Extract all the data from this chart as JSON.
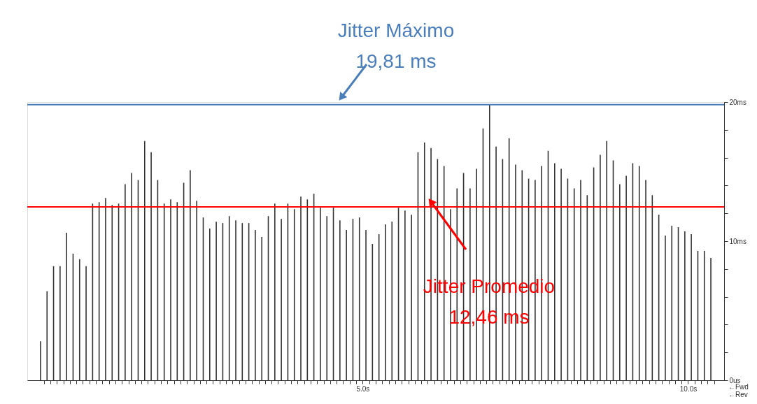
{
  "chart_data": {
    "type": "bar",
    "color": "#333333",
    "x": [
      0.05,
      0.15,
      0.25,
      0.35,
      0.45,
      0.55,
      0.65,
      0.75,
      0.85,
      0.95,
      1.05,
      1.15,
      1.25,
      1.35,
      1.45,
      1.55,
      1.65,
      1.75,
      1.85,
      1.95,
      2.05,
      2.15,
      2.25,
      2.35,
      2.45,
      2.55,
      2.65,
      2.75,
      2.85,
      2.95,
      3.05,
      3.15,
      3.25,
      3.35,
      3.45,
      3.55,
      3.65,
      3.75,
      3.85,
      3.95,
      4.05,
      4.15,
      4.25,
      4.35,
      4.45,
      4.55,
      4.65,
      4.75,
      4.85,
      4.95,
      5.05,
      5.15,
      5.25,
      5.35,
      5.45,
      5.55,
      5.65,
      5.75,
      5.85,
      5.95,
      6.05,
      6.15,
      6.25,
      6.35,
      6.45,
      6.55,
      6.65,
      6.75,
      6.85,
      6.95,
      7.05,
      7.15,
      7.25,
      7.35,
      7.45,
      7.55,
      7.65,
      7.75,
      7.85,
      7.95,
      8.05,
      8.15,
      8.25,
      8.35,
      8.45,
      8.55,
      8.65,
      8.75,
      8.85,
      8.95,
      9.05,
      9.15,
      9.25,
      9.35,
      9.45,
      9.55,
      9.65,
      9.75,
      9.85,
      9.95,
      10.05,
      10.15,
      10.25,
      10.35
    ],
    "values": [
      2.8,
      6.4,
      8.2,
      8.2,
      10.6,
      9.1,
      8.7,
      8.2,
      12.7,
      12.8,
      13.1,
      12.6,
      12.7,
      14.1,
      14.9,
      14.4,
      17.2,
      16.4,
      14.4,
      12.7,
      13.0,
      12.8,
      14.2,
      15.1,
      12.9,
      11.7,
      10.9,
      11.4,
      11.3,
      11.8,
      11.5,
      11.3,
      11.3,
      10.8,
      10.3,
      11.8,
      12.7,
      11.6,
      12.7,
      12.3,
      13.2,
      13.0,
      13.4,
      12.4,
      11.8,
      12.4,
      11.5,
      10.8,
      11.6,
      11.7,
      10.8,
      9.8,
      10.5,
      11.2,
      11.4,
      12.4,
      12.2,
      11.9,
      16.4,
      17.1,
      16.7,
      15.9,
      15.4,
      12.3,
      13.8,
      14.9,
      13.8,
      15.2,
      18.1,
      19.81,
      16.8,
      15.9,
      17.4,
      15.5,
      15.1,
      14.5,
      14.4,
      15.4,
      16.5,
      15.6,
      15.2,
      14.5,
      13.8,
      14.4,
      13.3,
      15.3,
      16.2,
      17.2,
      15.8,
      14.1,
      14.7,
      15.6,
      15.4,
      14.4,
      13.3,
      11.9,
      10.4,
      11.1,
      11.0,
      10.7,
      10.5,
      9.3,
      9.3,
      8.8
    ],
    "xlim": [
      -0.1,
      10.5
    ],
    "xticks": [
      {
        "value": 0.1,
        "label": null
      },
      {
        "value": 0.2,
        "label": null
      },
      {
        "value": 0.3,
        "label": null
      },
      {
        "value": 0.4,
        "label": null
      },
      {
        "value": 0.5,
        "label": null
      },
      {
        "value": 0.6,
        "label": null
      },
      {
        "value": 0.7,
        "label": null
      },
      {
        "value": 0.8,
        "label": null
      },
      {
        "value": 0.9,
        "label": null
      },
      {
        "value": 1.0,
        "label": null
      },
      {
        "value": 1.1,
        "label": null
      },
      {
        "value": 1.2,
        "label": null
      },
      {
        "value": 1.3,
        "label": null
      },
      {
        "value": 1.4,
        "label": null
      },
      {
        "value": 1.5,
        "label": null
      },
      {
        "value": 1.6,
        "label": null
      },
      {
        "value": 1.7,
        "label": null
      },
      {
        "value": 1.8,
        "label": null
      },
      {
        "value": 1.9,
        "label": null
      },
      {
        "value": 2.0,
        "label": null
      },
      {
        "value": 2.1,
        "label": null
      },
      {
        "value": 2.2,
        "label": null
      },
      {
        "value": 2.3,
        "label": null
      },
      {
        "value": 2.4,
        "label": null
      },
      {
        "value": 2.5,
        "label": null
      },
      {
        "value": 2.6,
        "label": null
      },
      {
        "value": 2.7,
        "label": null
      },
      {
        "value": 2.8,
        "label": null
      },
      {
        "value": 2.9,
        "label": null
      },
      {
        "value": 3.0,
        "label": null
      },
      {
        "value": 3.1,
        "label": null
      },
      {
        "value": 3.2,
        "label": null
      },
      {
        "value": 3.3,
        "label": null
      },
      {
        "value": 3.4,
        "label": null
      },
      {
        "value": 3.5,
        "label": null
      },
      {
        "value": 3.6,
        "label": null
      },
      {
        "value": 3.7,
        "label": null
      },
      {
        "value": 3.8,
        "label": null
      },
      {
        "value": 3.9,
        "label": null
      },
      {
        "value": 4.0,
        "label": null
      },
      {
        "value": 4.1,
        "label": null
      },
      {
        "value": 4.2,
        "label": null
      },
      {
        "value": 4.3,
        "label": null
      },
      {
        "value": 4.4,
        "label": null
      },
      {
        "value": 4.5,
        "label": null
      },
      {
        "value": 4.6,
        "label": null
      },
      {
        "value": 4.7,
        "label": null
      },
      {
        "value": 4.8,
        "label": null
      },
      {
        "value": 4.9,
        "label": null
      },
      {
        "value": 5.0,
        "label": "5.0s"
      },
      {
        "value": 5.1,
        "label": null
      },
      {
        "value": 5.2,
        "label": null
      },
      {
        "value": 5.3,
        "label": null
      },
      {
        "value": 5.4,
        "label": null
      },
      {
        "value": 5.5,
        "label": null
      },
      {
        "value": 5.6,
        "label": null
      },
      {
        "value": 5.7,
        "label": null
      },
      {
        "value": 5.8,
        "label": null
      },
      {
        "value": 5.9,
        "label": null
      },
      {
        "value": 6.0,
        "label": null
      },
      {
        "value": 6.1,
        "label": null
      },
      {
        "value": 6.2,
        "label": null
      },
      {
        "value": 6.3,
        "label": null
      },
      {
        "value": 6.4,
        "label": null
      },
      {
        "value": 6.5,
        "label": null
      },
      {
        "value": 6.6,
        "label": null
      },
      {
        "value": 6.7,
        "label": null
      },
      {
        "value": 6.8,
        "label": null
      },
      {
        "value": 6.9,
        "label": null
      },
      {
        "value": 7.0,
        "label": null
      },
      {
        "value": 7.1,
        "label": null
      },
      {
        "value": 7.2,
        "label": null
      },
      {
        "value": 7.3,
        "label": null
      },
      {
        "value": 7.4,
        "label": null
      },
      {
        "value": 7.5,
        "label": null
      },
      {
        "value": 7.6,
        "label": null
      },
      {
        "value": 7.7,
        "label": null
      },
      {
        "value": 7.8,
        "label": null
      },
      {
        "value": 7.9,
        "label": null
      },
      {
        "value": 8.0,
        "label": null
      },
      {
        "value": 8.1,
        "label": null
      },
      {
        "value": 8.2,
        "label": null
      },
      {
        "value": 8.3,
        "label": null
      },
      {
        "value": 8.4,
        "label": null
      },
      {
        "value": 8.5,
        "label": null
      },
      {
        "value": 8.6,
        "label": null
      },
      {
        "value": 8.7,
        "label": null
      },
      {
        "value": 8.8,
        "label": null
      },
      {
        "value": 8.9,
        "label": null
      },
      {
        "value": 9.0,
        "label": null
      },
      {
        "value": 9.1,
        "label": null
      },
      {
        "value": 9.2,
        "label": null
      },
      {
        "value": 9.3,
        "label": null
      },
      {
        "value": 9.4,
        "label": null
      },
      {
        "value": 9.5,
        "label": null
      },
      {
        "value": 9.6,
        "label": null
      },
      {
        "value": 9.7,
        "label": null
      },
      {
        "value": 9.8,
        "label": null
      },
      {
        "value": 9.9,
        "label": null
      },
      {
        "value": 10.0,
        "label": "10.0s"
      },
      {
        "value": 10.1,
        "label": null
      },
      {
        "value": 10.2,
        "label": null
      },
      {
        "value": 10.3,
        "label": null
      },
      {
        "value": 10.4,
        "label": null
      }
    ],
    "ylim": [
      0,
      20
    ],
    "yticks": [
      {
        "value": 0,
        "label": "0us"
      },
      {
        "value": 2,
        "label": null
      },
      {
        "value": 4,
        "label": null
      },
      {
        "value": 6,
        "label": null
      },
      {
        "value": 8,
        "label": null
      },
      {
        "value": 10,
        "label": "10ms"
      },
      {
        "value": 12,
        "label": null
      },
      {
        "value": 14,
        "label": null
      },
      {
        "value": 16,
        "label": null
      },
      {
        "value": 18,
        "label": null
      },
      {
        "value": 20,
        "label": "20ms"
      }
    ],
    "ref_lines": [
      {
        "axis": "y",
        "value": 19.81,
        "label": "Jitter Máximo\n19,81 ms",
        "color": "#4a7ebb"
      },
      {
        "axis": "y",
        "value": 12.46,
        "label": "Jitter Promedio\n12,46 ms",
        "color": "#ff0000"
      }
    ],
    "annotations": [
      "←Fwd",
      "←Rev"
    ],
    "grid": false
  }
}
